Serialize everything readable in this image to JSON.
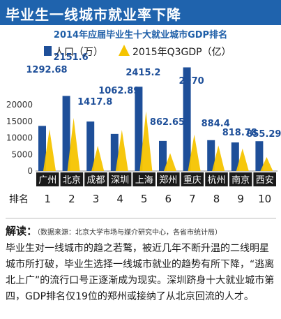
{
  "header": {
    "headline": "毕业生一线城市就业率下降",
    "subtitle": "2014年应届毕业生十大就业城市GDP排名"
  },
  "colors": {
    "banner": "#1f63ad",
    "population": "#1e4f99",
    "gdp": "#f5c400",
    "city_box": "#1a1a1a"
  },
  "chart_data": {
    "type": "bar",
    "title": "2014年应届毕业生十大就业城市GDP排名",
    "categories": [
      "广州",
      "北京",
      "成都",
      "深圳",
      "上海",
      "郑州",
      "重庆",
      "杭州",
      "南京",
      "西安"
    ],
    "ranks": [
      "1",
      "2",
      "3",
      "4",
      "5",
      "6",
      "7",
      "8",
      "9",
      "10"
    ],
    "series": [
      {
        "name": "人口（万）",
        "values": [
          1292.68,
          2151.6,
          1417.8,
          1062.89,
          2415.2,
          862.65,
          2970,
          884.4,
          818.78,
          855.29
        ],
        "labels": [
          "1292.68",
          "2151.6",
          "1417.8",
          "1062.89",
          "2415.2",
          "862.65",
          "2970",
          "884.4",
          "818.78",
          "855.29"
        ]
      },
      {
        "name": "2015年Q3GDP（亿）",
        "values": [
          12600,
          16000,
          7600,
          12400,
          18000,
          5400,
          11000,
          7700,
          6800,
          4200
        ]
      }
    ],
    "yticks": [
      "0",
      "5000",
      "10000",
      "15000",
      "20000"
    ],
    "ylim": [
      0,
      20000
    ],
    "ytick_values": [
      0,
      5000,
      10000,
      15000,
      20000
    ],
    "legend_placement": "top-left",
    "grid": false
  },
  "axis": {
    "rank_label": "排名"
  },
  "commentary": {
    "title": "解读：",
    "source": "（数据来源：北京大学市场与媒介研究中心，各省市统计局）",
    "body": "毕业生对一线城市的趋之若鹜，被近几年不断升温的二线明星城市所打破，毕业生选择一线城市就业的趋势有所下降，“逃离北上广”的流行口号正逐渐成为现实。深圳跻身十大就业城市第四，GDP排名仅19位的郑州或接纳了从北京回流的人才。"
  }
}
